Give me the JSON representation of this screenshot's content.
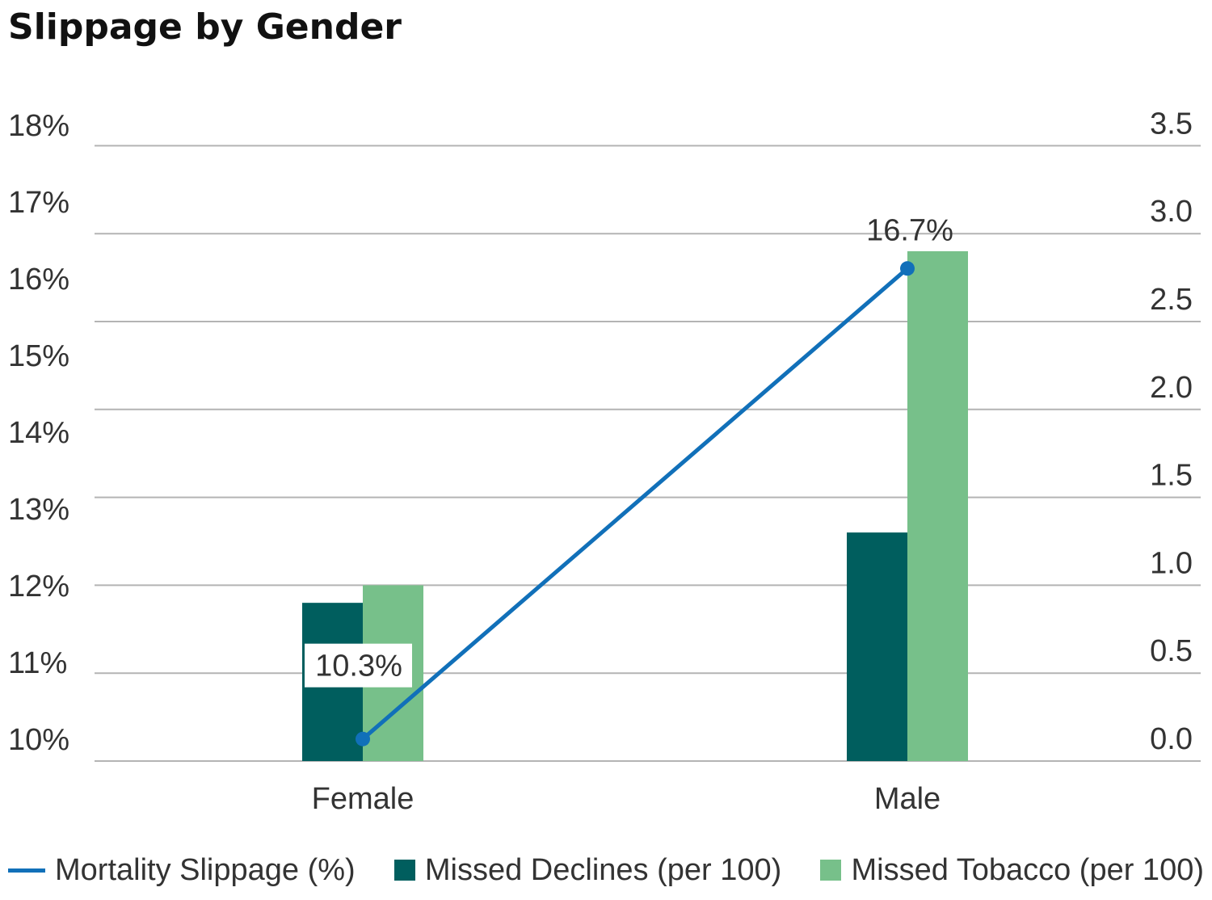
{
  "chart_data": {
    "type": "bar",
    "title": "Slippage by Gender",
    "categories": [
      "Female",
      "Male"
    ],
    "series": [
      {
        "name": "Mortality Slippage (%)",
        "type": "line",
        "axis": "left",
        "values": [
          10.3,
          16.7
        ],
        "labels": [
          "10.3%",
          "16.7%"
        ],
        "color": "#1170B9"
      },
      {
        "name": "Missed Declines (per 100)",
        "type": "bar",
        "axis": "right",
        "values": [
          0.9,
          1.3
        ],
        "color": "#005E5E"
      },
      {
        "name": "Missed Tobacco (per 100)",
        "type": "bar",
        "axis": "right",
        "values": [
          1.0,
          2.9
        ],
        "color": "#77C08A"
      }
    ],
    "y_left": {
      "ylim": [
        10,
        17
      ],
      "ticks": [
        "10%",
        "11%",
        "12%",
        "13%",
        "14%",
        "15%",
        "16%",
        "17%",
        "18%"
      ]
    },
    "y_right": {
      "ylim": [
        0,
        3.5
      ],
      "ticks": [
        "0.0",
        "0.5",
        "1.0",
        "1.5",
        "2.0",
        "2.5",
        "3.0",
        "3.5"
      ]
    },
    "grid": true,
    "legend": "bottom",
    "gridline_color": "#B4B4B4"
  }
}
